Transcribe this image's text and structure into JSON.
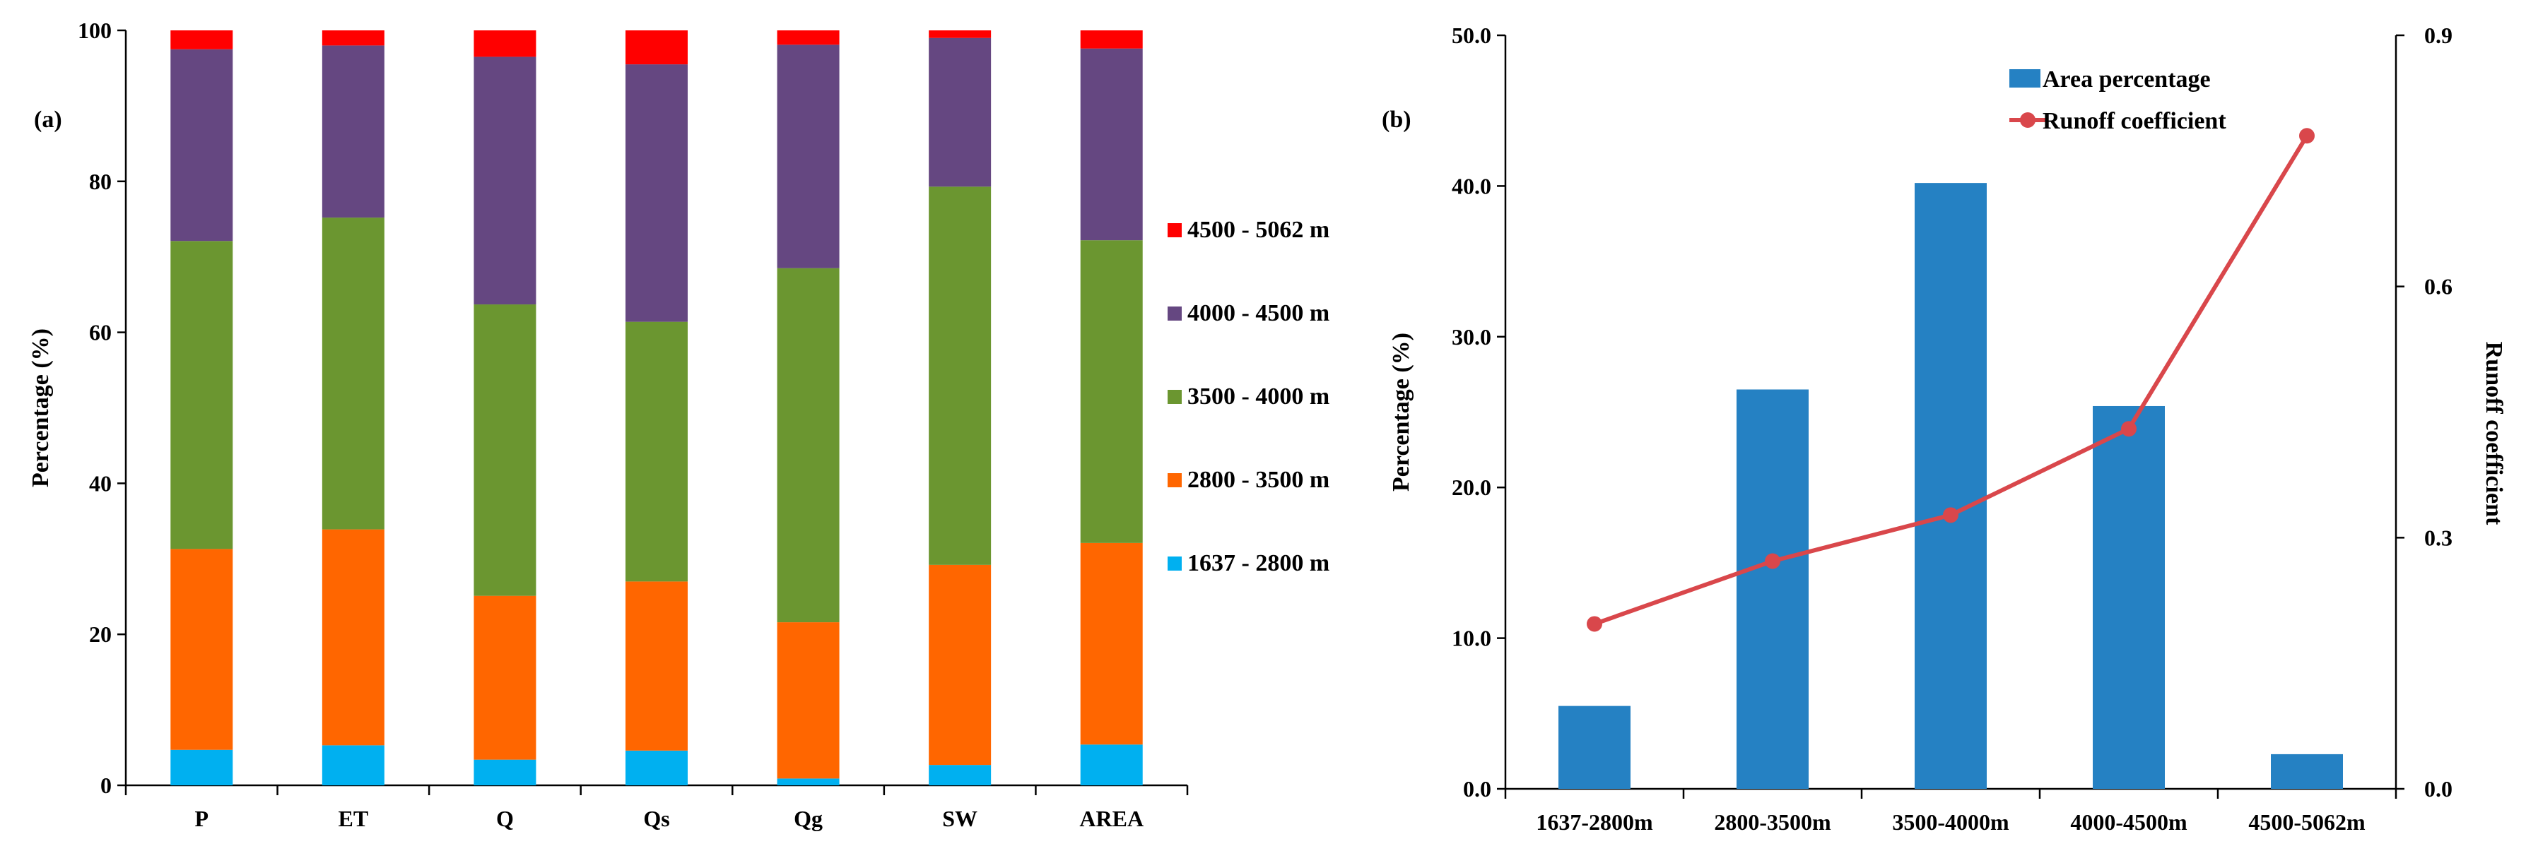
{
  "chart_data": [
    {
      "type": "bar",
      "stacked": true,
      "panel_label": "(a)",
      "categories": [
        "P",
        "ET",
        "Q",
        "Qs",
        "Qg",
        "SW",
        "AREA"
      ],
      "ylabel": "Percentage (%)",
      "xlabel": "",
      "ylim": [
        0,
        100
      ],
      "yticks": [
        0,
        20,
        40,
        60,
        80,
        100
      ],
      "legend_position": "right",
      "series": [
        {
          "name": "1637 - 2800 m",
          "color": "#00B0F0",
          "values": [
            4.7,
            5.3,
            3.4,
            4.6,
            0.9,
            2.7,
            5.4
          ]
        },
        {
          "name": "2800 - 3500 m",
          "color": "#FF6600",
          "values": [
            26.6,
            28.6,
            21.7,
            22.4,
            20.7,
            26.5,
            26.7
          ]
        },
        {
          "name": "3500 - 4000 m",
          "color": "#6B9630",
          "values": [
            40.8,
            41.3,
            38.6,
            34.4,
            46.9,
            50.1,
            40.1
          ]
        },
        {
          "name": "4000 - 4500 m",
          "color": "#654781",
          "values": [
            25.4,
            22.8,
            32.8,
            34.1,
            29.6,
            19.7,
            25.4
          ]
        },
        {
          "name": "4500 - 5062 m",
          "color": "#FF0000",
          "values": [
            2.5,
            2.0,
            3.5,
            4.5,
            1.9,
            1.0,
            2.4
          ]
        }
      ]
    },
    {
      "type": "bar+line",
      "panel_label": "(b)",
      "categories": [
        "1637-2800m",
        "2800-3500m",
        "3500-4000m",
        "4000-4500m",
        "4500-5062m"
      ],
      "ylabel": "Percentage (%)",
      "y2label": "Runoff coefficient",
      "ylim": [
        0,
        50
      ],
      "yticks": [
        "0.0",
        "10.0",
        "20.0",
        "30.0",
        "40.0",
        "50.0"
      ],
      "y2lim": [
        0,
        0.9
      ],
      "y2ticks": [
        "0.0",
        "0.3",
        "0.6",
        "0.9"
      ],
      "legend_position": "top-right",
      "series": [
        {
          "name": "Area percentage",
          "type": "bar",
          "axis": "left",
          "color": "#2581C3",
          "values": [
            5.5,
            26.5,
            40.2,
            25.4,
            2.3
          ]
        },
        {
          "name": "Runoff coefficient",
          "type": "line",
          "axis": "right",
          "color": "#D9474B",
          "values": [
            0.197,
            0.272,
            0.327,
            0.43,
            0.78
          ]
        }
      ]
    }
  ]
}
